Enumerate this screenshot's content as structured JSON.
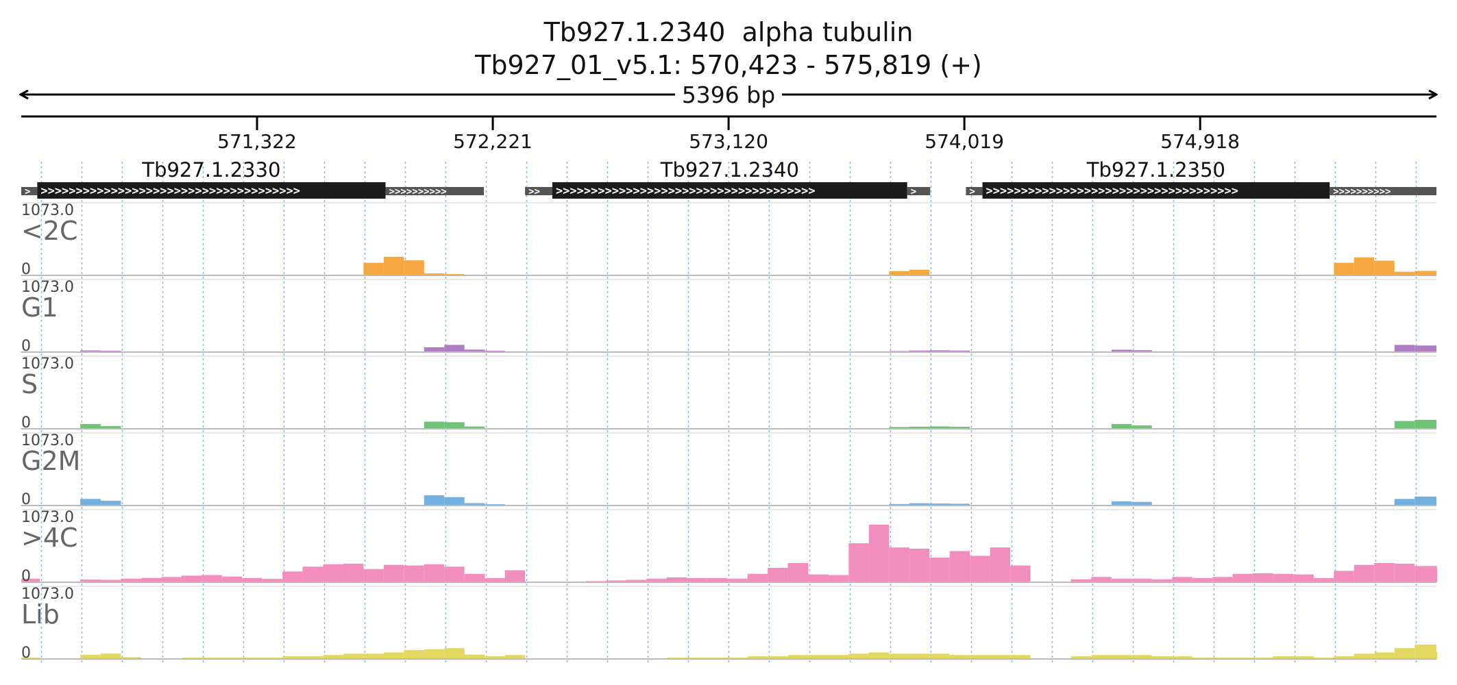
{
  "header": {
    "title": "Tb927.1.2340  alpha tubulin",
    "location": "Tb927_01_v5.1: 570,423 - 575,819 (+)",
    "span_label": "5396 bp"
  },
  "region": {
    "start": 570423,
    "end": 575819,
    "strand": "+"
  },
  "ruler": {
    "ticks": [
      {
        "pos": 571322,
        "label": "571,322"
      },
      {
        "pos": 572221,
        "label": "572,221"
      },
      {
        "pos": 573120,
        "label": "573,120"
      },
      {
        "pos": 574019,
        "label": "574,019"
      },
      {
        "pos": 574918,
        "label": "574,918"
      }
    ]
  },
  "genes": [
    {
      "id": "Tb927.1.2330",
      "utr5": [
        570423,
        570484
      ],
      "cds": [
        570484,
        571812
      ],
      "utr3": [
        571812,
        572187
      ]
    },
    {
      "id": "Tb927.1.2340",
      "utr5": [
        572344,
        572448
      ],
      "cds": [
        572448,
        573801
      ],
      "utr3": [
        573801,
        573889
      ]
    },
    {
      "id": "Tb927.1.2350",
      "utr5": [
        574025,
        574088
      ],
      "cds": [
        574088,
        575412
      ],
      "utr3": [
        575412,
        575819
      ]
    }
  ],
  "colors": {
    "gene_cds": "#1b1b1b",
    "gene_utr": "#555555",
    "grid": "#8fb6e0",
    "track_baseline": "#bbbbbb"
  },
  "chart_data": {
    "type": "area",
    "x": [
      570423,
      570494,
      570571,
      570648,
      570726,
      570803,
      570880,
      570957,
      571034,
      571111,
      571188,
      571265,
      571342,
      571419,
      571496,
      571574,
      571651,
      571728,
      571805,
      571882,
      571959,
      572036,
      572113,
      572190,
      572267,
      572344,
      572421,
      572498,
      572576,
      572653,
      572730,
      572807,
      572884,
      572961,
      573038,
      573115,
      573192,
      573269,
      573346,
      573424,
      573501,
      573578,
      573655,
      573732,
      573809,
      573886,
      573963,
      574040,
      574117,
      574194,
      574271,
      574348,
      574425,
      574503,
      574580,
      574657,
      574734,
      574811,
      574888,
      574965,
      575042,
      575119,
      575196,
      575273,
      575351,
      575428,
      575505,
      575582,
      575659,
      575736,
      575819
    ],
    "ylim": [
      0,
      1073.0
    ],
    "series": [
      {
        "name": "<2C",
        "color": "#f5a742",
        "values": [
          0,
          0,
          0,
          6,
          0,
          0,
          0,
          0,
          0,
          0,
          0,
          0,
          0,
          0,
          0,
          0,
          0,
          210,
          310,
          250,
          32,
          22,
          0,
          0,
          0,
          0,
          0,
          0,
          0,
          0,
          0,
          11,
          0,
          0,
          0,
          0,
          0,
          0,
          0,
          0,
          0,
          0,
          0,
          70,
          95,
          0,
          0,
          0,
          0,
          0,
          0,
          0,
          0,
          0,
          0,
          0,
          0,
          0,
          0,
          0,
          0,
          0,
          0,
          0,
          0,
          210,
          300,
          245,
          60,
          75,
          0
        ]
      },
      {
        "name": "G1",
        "color": "#b07cc2",
        "values": [
          0,
          0,
          0,
          28,
          22,
          0,
          0,
          0,
          0,
          0,
          0,
          0,
          0,
          0,
          0,
          0,
          0,
          0,
          0,
          0,
          80,
          120,
          42,
          22,
          12,
          0,
          0,
          0,
          0,
          0,
          0,
          0,
          0,
          0,
          0,
          0,
          0,
          0,
          0,
          0,
          0,
          0,
          0,
          18,
          26,
          30,
          26,
          0,
          0,
          0,
          0,
          0,
          0,
          0,
          40,
          32,
          0,
          0,
          0,
          0,
          0,
          0,
          0,
          0,
          0,
          0,
          0,
          0,
          120,
          110,
          0
        ]
      },
      {
        "name": "S",
        "color": "#6cc474",
        "values": [
          0,
          0,
          0,
          80,
          44,
          0,
          0,
          0,
          0,
          0,
          0,
          0,
          0,
          0,
          0,
          0,
          0,
          0,
          0,
          0,
          120,
          110,
          38,
          12,
          0,
          0,
          0,
          0,
          0,
          0,
          0,
          0,
          0,
          0,
          0,
          0,
          0,
          0,
          0,
          0,
          0,
          0,
          0,
          30,
          36,
          40,
          34,
          0,
          0,
          0,
          0,
          0,
          0,
          0,
          80,
          56,
          0,
          0,
          0,
          0,
          0,
          0,
          0,
          0,
          0,
          0,
          0,
          0,
          130,
          150,
          0
        ]
      },
      {
        "name": "G2M",
        "color": "#72b0e0",
        "values": [
          0,
          0,
          0,
          110,
          80,
          0,
          0,
          0,
          0,
          0,
          0,
          0,
          0,
          0,
          0,
          0,
          0,
          0,
          0,
          0,
          170,
          140,
          40,
          22,
          0,
          0,
          0,
          0,
          0,
          0,
          0,
          0,
          0,
          0,
          0,
          0,
          0,
          0,
          0,
          0,
          0,
          0,
          0,
          25,
          38,
          34,
          30,
          0,
          0,
          0,
          0,
          0,
          0,
          0,
          70,
          60,
          0,
          0,
          0,
          0,
          0,
          0,
          0,
          0,
          0,
          0,
          0,
          0,
          110,
          150,
          0
        ]
      },
      {
        "name": ">4C",
        "color": "#f28ebd",
        "values": [
          60,
          0,
          0,
          44,
          40,
          60,
          72,
          88,
          110,
          120,
          95,
          70,
          55,
          180,
          260,
          300,
          310,
          220,
          290,
          280,
          300,
          260,
          140,
          70,
          200,
          0,
          0,
          0,
          20,
          30,
          40,
          60,
          80,
          70,
          70,
          60,
          140,
          240,
          320,
          130,
          120,
          650,
          960,
          580,
          560,
          410,
          520,
          440,
          580,
          280,
          0,
          0,
          48,
          88,
          60,
          60,
          48,
          88,
          70,
          88,
          140,
          150,
          140,
          130,
          70,
          190,
          290,
          320,
          310,
          270,
          260
        ]
      },
      {
        "name": "Lib",
        "color": "#e3d862",
        "values": [
          22,
          0,
          0,
          70,
          90,
          30,
          0,
          0,
          22,
          22,
          22,
          22,
          22,
          44,
          44,
          66,
          88,
          88,
          110,
          150,
          160,
          180,
          72,
          44,
          66,
          0,
          0,
          0,
          0,
          0,
          0,
          0,
          22,
          22,
          22,
          22,
          44,
          44,
          66,
          66,
          66,
          88,
          110,
          88,
          88,
          88,
          66,
          66,
          66,
          66,
          0,
          0,
          44,
          66,
          66,
          66,
          44,
          44,
          22,
          22,
          22,
          22,
          44,
          44,
          22,
          44,
          88,
          110,
          180,
          240,
          120
        ]
      }
    ]
  }
}
